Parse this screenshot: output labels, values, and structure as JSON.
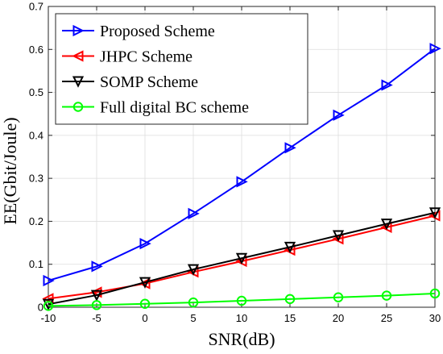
{
  "chart_data": {
    "type": "line",
    "title": "",
    "xlabel": "SNR(dB)",
    "ylabel": "EE(Gbit/Joule)",
    "x": [
      -10,
      -5,
      0,
      5,
      10,
      15,
      20,
      25,
      30
    ],
    "xlim": [
      -10,
      30
    ],
    "ylim": [
      0,
      0.7
    ],
    "xticks": [
      -10,
      -5,
      0,
      5,
      10,
      15,
      20,
      25,
      30
    ],
    "yticks": [
      0,
      0.1,
      0.2,
      0.3,
      0.4,
      0.5,
      0.6,
      0.7
    ],
    "xtick_labels": [
      "-10",
      "-5",
      "0",
      "5",
      "10",
      "15",
      "20",
      "25",
      "30"
    ],
    "ytick_labels": [
      "0",
      "0.1",
      "0.2",
      "0.3",
      "0.4",
      "0.5",
      "0.6",
      "0.7"
    ],
    "grid": true,
    "legend_position": "top-left",
    "series": [
      {
        "name": "Proposed Scheme",
        "color": "#0000ff",
        "marker": "triangle-right",
        "values": [
          0.062,
          0.095,
          0.148,
          0.218,
          0.292,
          0.371,
          0.447,
          0.517,
          0.602
        ]
      },
      {
        "name": "JHPC Scheme",
        "color": "#ff0000",
        "marker": "triangle-left",
        "values": [
          0.02,
          0.035,
          0.055,
          0.082,
          0.107,
          0.133,
          0.159,
          0.186,
          0.213
        ]
      },
      {
        "name": "SOMP Scheme",
        "color": "#000000",
        "marker": "triangle-down",
        "values": [
          0.007,
          0.028,
          0.058,
          0.088,
          0.114,
          0.14,
          0.167,
          0.194,
          0.22
        ]
      },
      {
        "name": "Full digital BC scheme",
        "color": "#00ff00",
        "marker": "circle",
        "values": [
          0.003,
          0.005,
          0.008,
          0.011,
          0.015,
          0.019,
          0.023,
          0.027,
          0.032
        ]
      }
    ]
  }
}
